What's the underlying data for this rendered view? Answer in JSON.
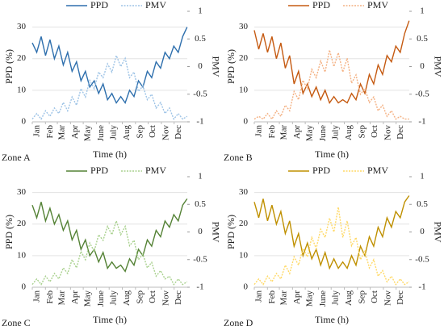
{
  "chart_data": [
    {
      "type": "line",
      "annotation": "Zone A",
      "xlabel": "Time (h)",
      "ylabel": "PPD (%)",
      "y2label": "PMV",
      "legend": "upper center",
      "grid": true,
      "xlim": [
        0,
        8760
      ],
      "xticks": [
        {
          "value": 0,
          "label": "Jan"
        },
        {
          "value": 744,
          "label": "Feb"
        },
        {
          "value": 1416,
          "label": "Mar"
        },
        {
          "value": 2160,
          "label": "Apr"
        },
        {
          "value": 2880,
          "label": "May"
        },
        {
          "value": 3624,
          "label": "June"
        },
        {
          "value": 4344,
          "label": "July"
        },
        {
          "value": 5088,
          "label": "Aug"
        },
        {
          "value": 5832,
          "label": "Sep"
        },
        {
          "value": 6552,
          "label": "Oct"
        },
        {
          "value": 7296,
          "label": "Nov"
        },
        {
          "value": 8016,
          "label": "Dec"
        }
      ],
      "ylim": [
        0,
        35
      ],
      "yticks": [
        0,
        10,
        20,
        30
      ],
      "y2lim": [
        -1,
        1
      ],
      "y2ticks": [
        -1,
        -0.5,
        0,
        0.5,
        1
      ],
      "x": [
        0,
        250,
        500,
        750,
        1000,
        1250,
        1500,
        1750,
        2000,
        2250,
        2500,
        2750,
        3000,
        3250,
        3500,
        3750,
        4000,
        4250,
        4500,
        4750,
        5000,
        5250,
        5500,
        5750,
        6000,
        6250,
        6500,
        6750,
        7000,
        7250,
        7500,
        7750,
        8000,
        8250,
        8500,
        8750
      ],
      "series": [
        {
          "name": "PPD",
          "color": "#2e6fad",
          "style": "solid",
          "values": [
            25,
            22,
            27,
            21,
            26,
            20,
            24,
            18,
            22,
            16,
            19,
            13,
            16,
            11,
            13,
            9,
            12,
            7,
            9,
            6,
            8,
            6,
            10,
            8,
            13,
            11,
            16,
            14,
            19,
            17,
            22,
            20,
            24,
            22,
            27,
            30
          ]
        },
        {
          "name": "PMV",
          "color": "#9dc3e6",
          "style": "dotted",
          "axis": "y2",
          "values": [
            -0.95,
            -0.85,
            -0.95,
            -0.8,
            -0.9,
            -0.75,
            -0.85,
            -0.65,
            -0.8,
            -0.55,
            -0.7,
            -0.4,
            -0.55,
            -0.25,
            -0.4,
            -0.1,
            -0.2,
            0.05,
            -0.1,
            0.2,
            0.0,
            0.15,
            -0.2,
            -0.1,
            -0.45,
            -0.35,
            -0.6,
            -0.5,
            -0.75,
            -0.65,
            -0.85,
            -0.75,
            -0.95,
            -0.85,
            -0.95,
            -0.9
          ]
        }
      ]
    },
    {
      "type": "line",
      "annotation": "Zone B",
      "xlabel": "Time (h)",
      "ylabel": "PPD (%)",
      "y2label": "PMV",
      "legend": "upper center",
      "grid": true,
      "xlim": [
        0,
        8760
      ],
      "xticks": [
        {
          "value": 0,
          "label": "Jan"
        },
        {
          "value": 744,
          "label": "Feb"
        },
        {
          "value": 1416,
          "label": "Mar"
        },
        {
          "value": 2160,
          "label": "Apr"
        },
        {
          "value": 2880,
          "label": "May"
        },
        {
          "value": 3624,
          "label": "June"
        },
        {
          "value": 4344,
          "label": "July"
        },
        {
          "value": 5088,
          "label": "Aug"
        },
        {
          "value": 5832,
          "label": "Sep"
        },
        {
          "value": 6552,
          "label": "Oct"
        },
        {
          "value": 7296,
          "label": "Nov"
        },
        {
          "value": 8016,
          "label": "Dec"
        }
      ],
      "ylim": [
        0,
        35
      ],
      "yticks": [
        0,
        10,
        20,
        30
      ],
      "y2lim": [
        -1,
        1
      ],
      "y2ticks": [
        -1,
        -0.5,
        0,
        0.5,
        1
      ],
      "x": [
        0,
        250,
        500,
        750,
        1000,
        1250,
        1500,
        1750,
        2000,
        2250,
        2500,
        2750,
        3000,
        3250,
        3500,
        3750,
        4000,
        4250,
        4500,
        4750,
        5000,
        5250,
        5500,
        5750,
        6000,
        6250,
        6500,
        6750,
        7000,
        7250,
        7500,
        7750,
        8000,
        8250,
        8500,
        8750
      ],
      "series": [
        {
          "name": "PPD",
          "color": "#c55a11",
          "style": "solid",
          "values": [
            29,
            23,
            28,
            22,
            27,
            20,
            25,
            17,
            21,
            12,
            16,
            9,
            12,
            8,
            11,
            7,
            10,
            6,
            8,
            6,
            7,
            6,
            9,
            7,
            12,
            9,
            15,
            12,
            18,
            15,
            21,
            19,
            24,
            22,
            28,
            32
          ]
        },
        {
          "name": "PMV",
          "color": "#f4b183",
          "style": "dotted",
          "axis": "y2",
          "values": [
            -0.95,
            -0.9,
            -0.95,
            -0.85,
            -0.95,
            -0.8,
            -0.9,
            -0.7,
            -0.8,
            -0.45,
            -0.6,
            -0.25,
            -0.4,
            -0.05,
            -0.2,
            0.1,
            -0.1,
            0.3,
            0.0,
            0.25,
            -0.1,
            0.15,
            -0.3,
            -0.15,
            -0.5,
            -0.4,
            -0.65,
            -0.55,
            -0.8,
            -0.7,
            -0.9,
            -0.8,
            -0.95,
            -0.9,
            -0.95,
            -0.95
          ]
        }
      ]
    },
    {
      "type": "line",
      "annotation": "Zone C",
      "xlabel": "Time (h)",
      "ylabel": "PPD (%)",
      "y2label": "PMV",
      "legend": "upper center",
      "grid": true,
      "xlim": [
        0,
        8760
      ],
      "xticks": [
        {
          "value": 0,
          "label": "Jan"
        },
        {
          "value": 744,
          "label": "Feb"
        },
        {
          "value": 1416,
          "label": "Mar"
        },
        {
          "value": 2160,
          "label": "Apr"
        },
        {
          "value": 2880,
          "label": "May"
        },
        {
          "value": 3624,
          "label": "June"
        },
        {
          "value": 4344,
          "label": "July"
        },
        {
          "value": 5088,
          "label": "Aug"
        },
        {
          "value": 5832,
          "label": "Sep"
        },
        {
          "value": 6552,
          "label": "Oct"
        },
        {
          "value": 7296,
          "label": "Nov"
        },
        {
          "value": 8016,
          "label": "Dec"
        }
      ],
      "ylim": [
        0,
        35
      ],
      "yticks": [
        0,
        10,
        20,
        30
      ],
      "y2lim": [
        -1,
        1
      ],
      "y2ticks": [
        -1,
        -0.5,
        0,
        0.5,
        1
      ],
      "x": [
        0,
        250,
        500,
        750,
        1000,
        1250,
        1500,
        1750,
        2000,
        2250,
        2500,
        2750,
        3000,
        3250,
        3500,
        3750,
        4000,
        4250,
        4500,
        4750,
        5000,
        5250,
        5500,
        5750,
        6000,
        6250,
        6500,
        6750,
        7000,
        7250,
        7500,
        7750,
        8000,
        8250,
        8500,
        8750
      ],
      "series": [
        {
          "name": "PPD",
          "color": "#548235",
          "style": "solid",
          "values": [
            26,
            22,
            27,
            21,
            25,
            20,
            23,
            18,
            21,
            15,
            18,
            12,
            15,
            10,
            12,
            8,
            11,
            6,
            8,
            6,
            7,
            5,
            9,
            7,
            12,
            10,
            15,
            13,
            18,
            16,
            21,
            19,
            23,
            21,
            26,
            28
          ]
        },
        {
          "name": "PMV",
          "color": "#a9d18e",
          "style": "dotted",
          "axis": "y2",
          "values": [
            -0.95,
            -0.85,
            -0.95,
            -0.8,
            -0.9,
            -0.75,
            -0.85,
            -0.65,
            -0.75,
            -0.5,
            -0.65,
            -0.35,
            -0.5,
            -0.2,
            -0.35,
            -0.05,
            -0.15,
            0.1,
            -0.05,
            0.2,
            -0.05,
            0.1,
            -0.25,
            -0.15,
            -0.5,
            -0.4,
            -0.65,
            -0.55,
            -0.8,
            -0.7,
            -0.85,
            -0.8,
            -0.95,
            -0.85,
            -0.95,
            -0.9
          ]
        }
      ]
    },
    {
      "type": "line",
      "annotation": "Zone D",
      "xlabel": "Time (h)",
      "ylabel": "PPD (%)",
      "y2label": "PMV",
      "legend": "upper center",
      "grid": true,
      "xlim": [
        0,
        8760
      ],
      "xticks": [
        {
          "value": 0,
          "label": "Jan"
        },
        {
          "value": 744,
          "label": "Feb"
        },
        {
          "value": 1416,
          "label": "Mar"
        },
        {
          "value": 2160,
          "label": "Apr"
        },
        {
          "value": 2880,
          "label": "May"
        },
        {
          "value": 3624,
          "label": "June"
        },
        {
          "value": 4344,
          "label": "July"
        },
        {
          "value": 5088,
          "label": "Aug"
        },
        {
          "value": 5832,
          "label": "Sep"
        },
        {
          "value": 6552,
          "label": "Oct"
        },
        {
          "value": 7296,
          "label": "Nov"
        },
        {
          "value": 8016,
          "label": "Dec"
        }
      ],
      "ylim": [
        0,
        35
      ],
      "yticks": [
        0,
        10,
        20,
        30
      ],
      "y2lim": [
        -1,
        1
      ],
      "y2ticks": [
        -1,
        -0.5,
        0,
        0.5,
        1
      ],
      "x": [
        0,
        250,
        500,
        750,
        1000,
        1250,
        1500,
        1750,
        2000,
        2250,
        2500,
        2750,
        3000,
        3250,
        3500,
        3750,
        4000,
        4250,
        4500,
        4750,
        5000,
        5250,
        5500,
        5750,
        6000,
        6250,
        6500,
        6750,
        7000,
        7250,
        7500,
        7750,
        8000,
        8250,
        8500,
        8750
      ],
      "series": [
        {
          "name": "PPD",
          "color": "#bf9000",
          "style": "solid",
          "values": [
            27,
            22,
            28,
            21,
            26,
            20,
            24,
            17,
            21,
            13,
            17,
            10,
            14,
            9,
            12,
            7,
            11,
            6,
            9,
            6,
            8,
            6,
            10,
            7,
            13,
            10,
            16,
            13,
            19,
            16,
            22,
            19,
            24,
            22,
            27,
            29
          ]
        },
        {
          "name": "PMV",
          "color": "#ffd966",
          "style": "dotted",
          "axis": "y2",
          "values": [
            -0.95,
            -0.85,
            -0.95,
            -0.8,
            -0.9,
            -0.75,
            -0.85,
            -0.6,
            -0.75,
            -0.45,
            -0.6,
            -0.3,
            -0.45,
            -0.1,
            -0.3,
            0.05,
            -0.1,
            0.25,
            0.0,
            0.45,
            -0.1,
            0.2,
            -0.25,
            -0.1,
            -0.5,
            -0.35,
            -0.65,
            -0.5,
            -0.8,
            -0.7,
            -0.9,
            -0.8,
            -0.95,
            -0.85,
            -0.95,
            -0.9
          ]
        }
      ]
    }
  ]
}
